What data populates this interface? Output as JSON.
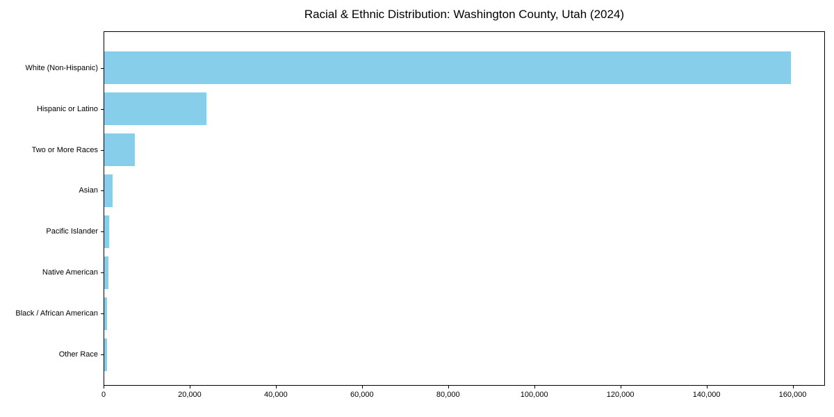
{
  "title": "Racial & Ethnic Distribution: Washington County, Utah (2024)",
  "chart_data": {
    "type": "bar",
    "orientation": "horizontal",
    "title": "Racial & Ethnic Distribution: Washington County, Utah (2024)",
    "xlabel": "",
    "ylabel": "",
    "categories": [
      "White (Non-Hispanic)",
      "Hispanic or Latino",
      "Two or More Races",
      "Asian",
      "Pacific Islander",
      "Native American",
      "Black / African American",
      "Other Race"
    ],
    "values": [
      159500,
      23700,
      7100,
      2000,
      1200,
      900,
      700,
      650
    ],
    "xlim": [
      0,
      167500
    ],
    "xticks": [
      0,
      20000,
      40000,
      60000,
      80000,
      100000,
      120000,
      140000,
      160000
    ],
    "xtick_labels": [
      "0",
      "20,000",
      "40,000",
      "60,000",
      "80,000",
      "100,000",
      "120,000",
      "140,000",
      "160,000"
    ],
    "grid": false,
    "legend": null,
    "bar_color": "#87CEEB"
  },
  "colors": {
    "bar": "#87CEEB",
    "axis": "#000000",
    "background": "#ffffff",
    "text": "#000000"
  }
}
